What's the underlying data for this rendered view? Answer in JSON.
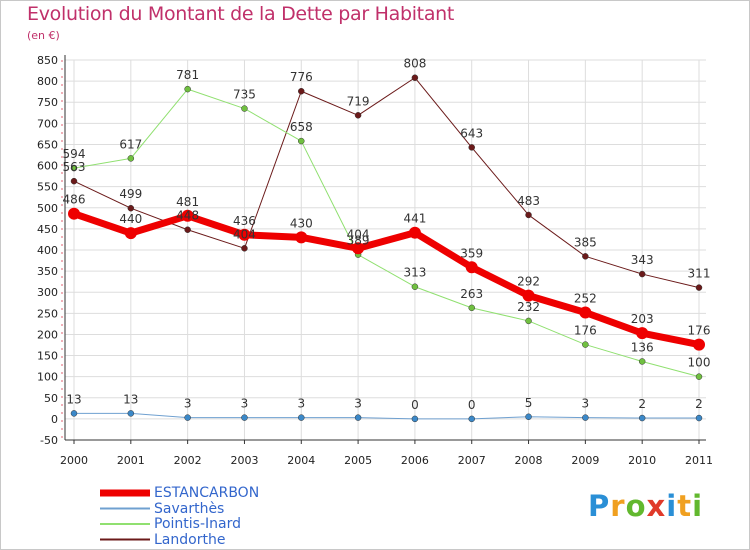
{
  "header": {
    "title": "Evolution du Montant de la Dette par Habitant",
    "subtitle": "(en €)"
  },
  "brand": {
    "letters": [
      "P",
      "r",
      "o",
      "x",
      "i",
      "t",
      "i"
    ],
    "colors": [
      "#2a8fd6",
      "#f0a020",
      "#62b82e",
      "#e03a2a",
      "#2a8fd6",
      "#f0a020",
      "#62b82e"
    ]
  },
  "chart_data": {
    "type": "line",
    "x": [
      "2000",
      "2001",
      "2002",
      "2003",
      "2004",
      "2005",
      "2006",
      "2007",
      "2008",
      "2009",
      "2010",
      "2011"
    ],
    "ylim": [
      -50,
      850
    ],
    "yticks": [
      -50,
      0,
      50,
      100,
      150,
      200,
      250,
      300,
      350,
      400,
      450,
      500,
      550,
      600,
      650,
      700,
      750,
      800,
      850
    ],
    "grid": true,
    "legend": "bottom-left",
    "series": [
      {
        "name": "Landorthe",
        "color": "#6b1a1a",
        "marker": "#6b1a1a",
        "width": 1,
        "values": [
          563,
          499,
          448,
          404,
          776,
          719,
          808,
          643,
          483,
          385,
          343,
          311
        ],
        "labels": [
          "563",
          "499",
          "448",
          "404",
          "776",
          "719",
          "808",
          "643",
          "483",
          "385",
          "343",
          "311"
        ]
      },
      {
        "name": "Pointis-Inard",
        "color": "#90e070",
        "marker": "#70c040",
        "width": 1,
        "values": [
          594,
          617,
          781,
          735,
          658,
          389,
          313,
          263,
          232,
          176,
          136,
          100
        ],
        "labels": [
          "594",
          "617",
          "781",
          "735",
          "658",
          "389",
          "313",
          "263",
          "232",
          "176",
          "136",
          "100"
        ]
      },
      {
        "name": "Savarthès",
        "color": "#6fa0d0",
        "marker": "#3b88c8",
        "width": 1,
        "values": [
          13,
          13,
          3,
          3,
          3,
          3,
          0,
          0,
          5,
          3,
          2,
          2
        ],
        "labels": [
          "13",
          "13",
          "3",
          "3",
          "3",
          "3",
          "0",
          "0",
          "5",
          "3",
          "2",
          "2"
        ]
      },
      {
        "name": "ESTANCARBON",
        "color": "#ee0000",
        "marker": "#ee0000",
        "width": 7,
        "values": [
          486,
          440,
          481,
          436,
          430,
          404,
          441,
          359,
          292,
          252,
          203,
          176
        ],
        "labels": [
          "486",
          "440",
          "481",
          "436",
          "430",
          "404",
          "441",
          "359",
          "292",
          "252",
          "203",
          "176"
        ]
      }
    ],
    "legend_order": [
      "ESTANCARBON",
      "Savarthès",
      "Pointis-Inard",
      "Landorthe"
    ]
  }
}
